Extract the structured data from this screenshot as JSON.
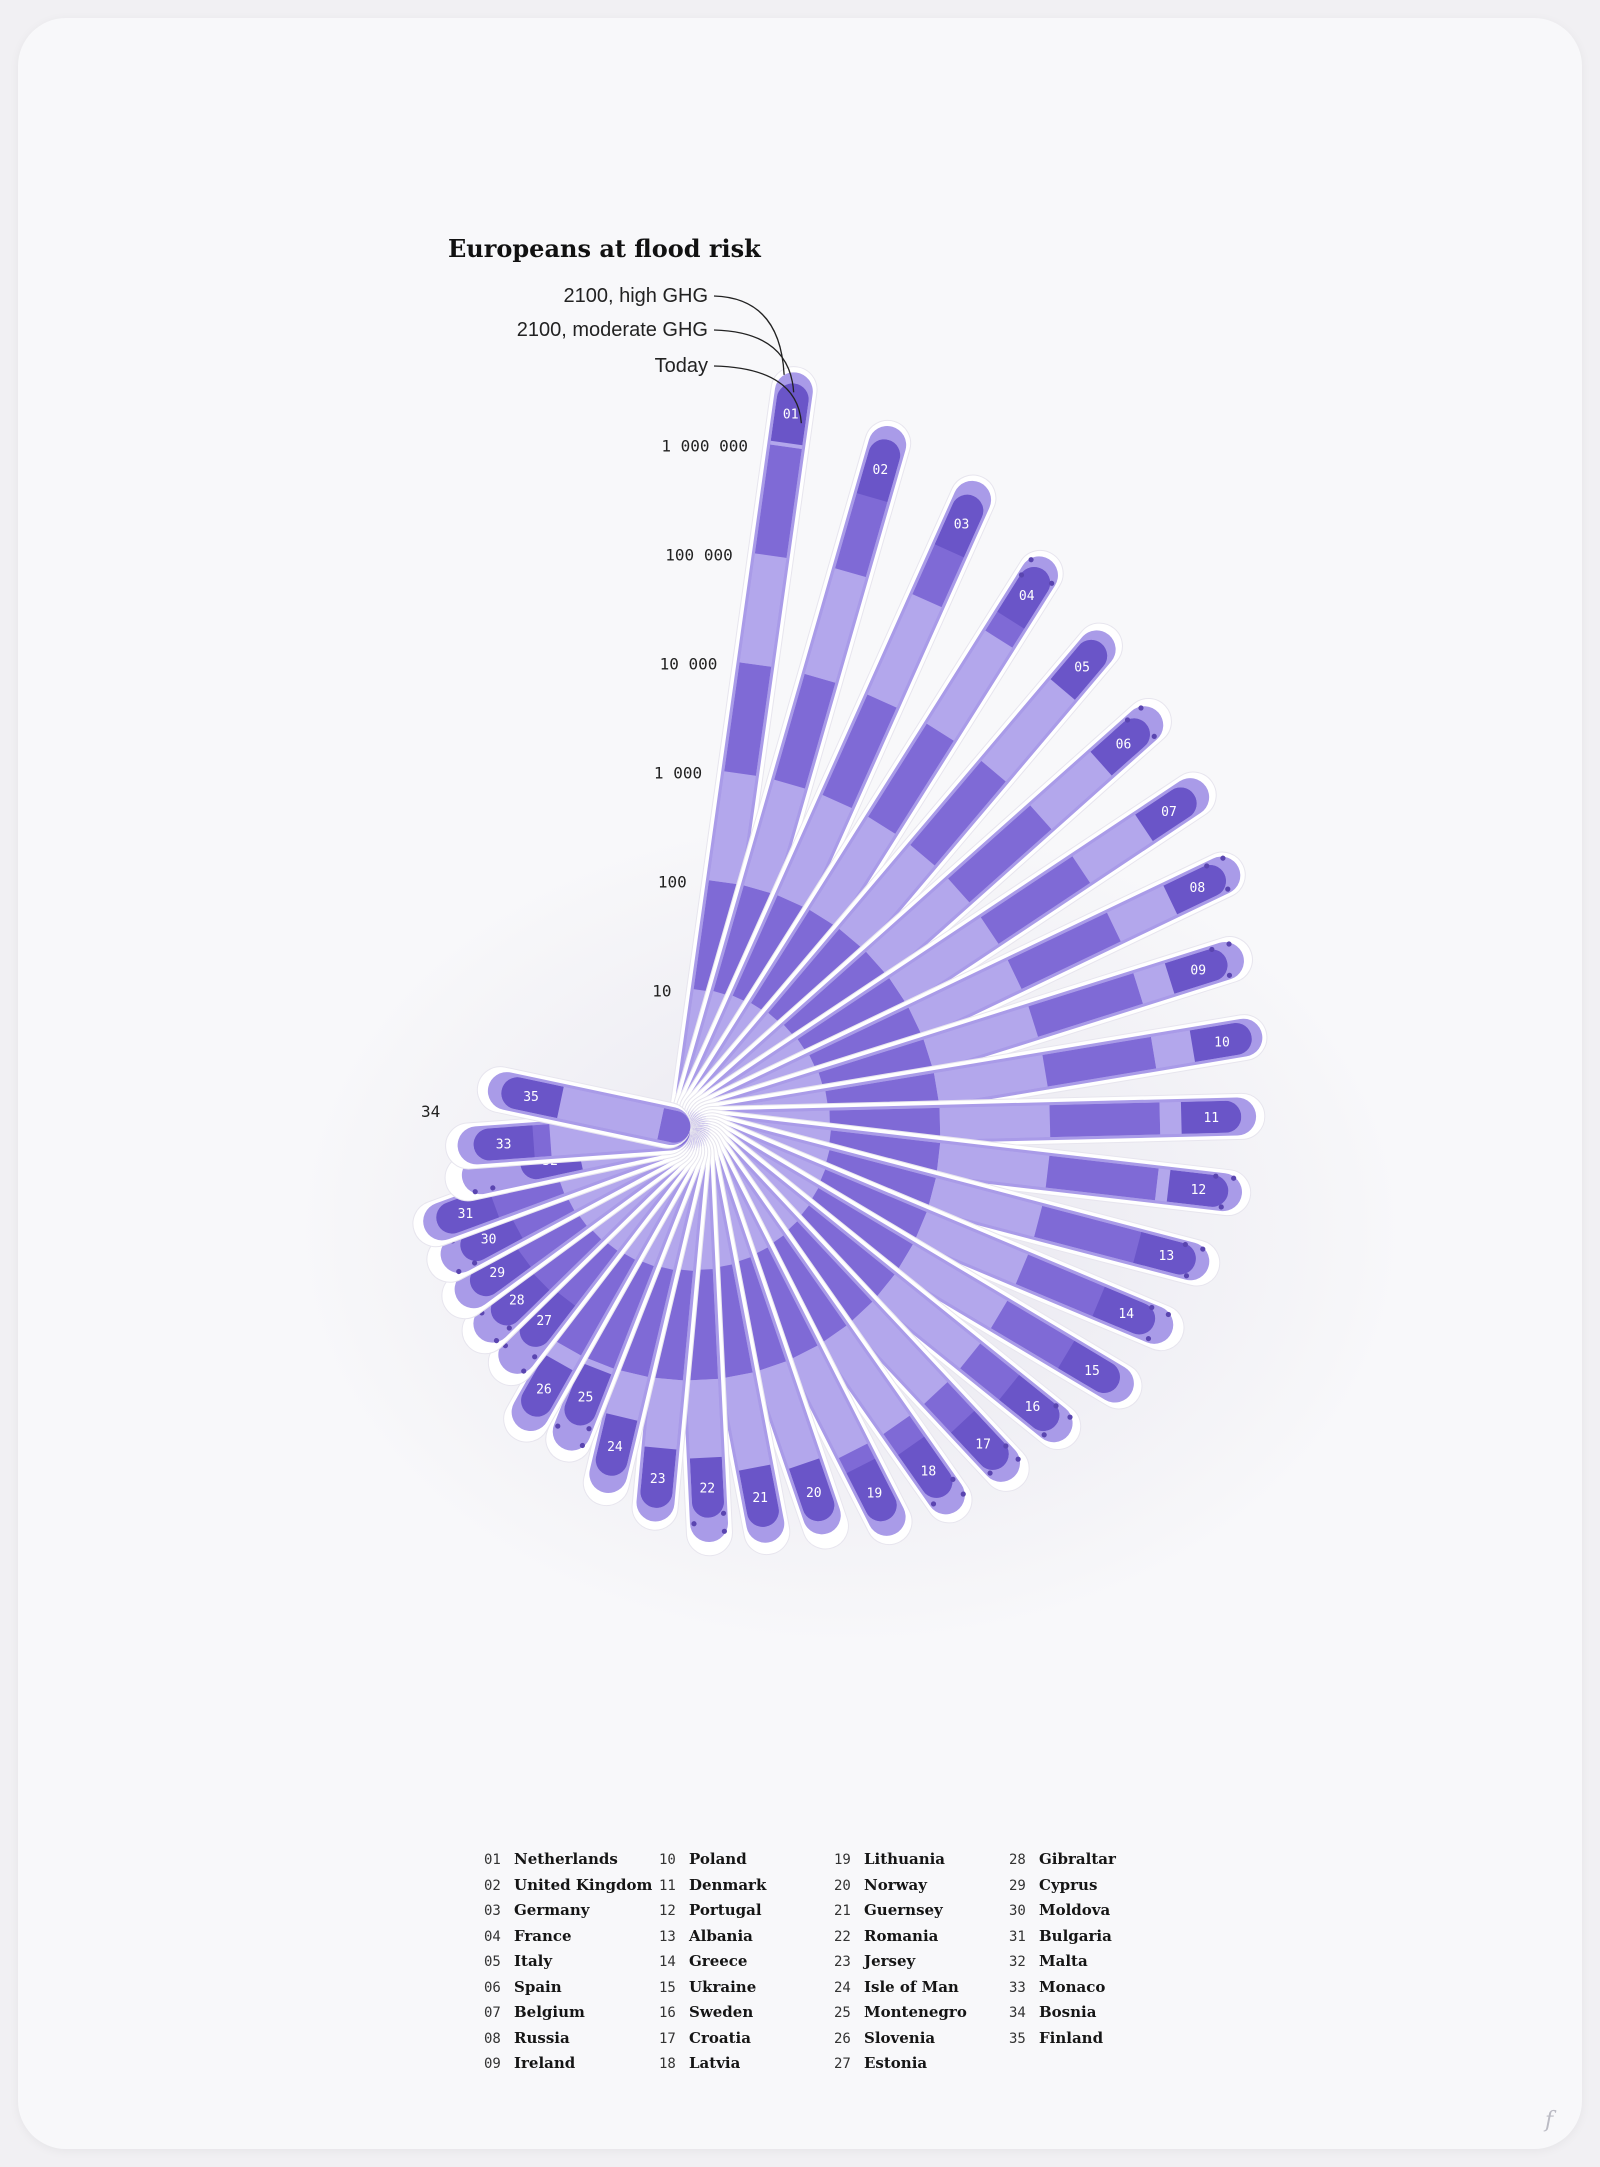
{
  "chart_data": {
    "type": "radial-bar",
    "title": "Europeans at flood risk",
    "series_names": [
      "2100, high GHG",
      "2100, moderate GHG",
      "Today"
    ],
    "scale": "log",
    "y_ticks": [
      "1 000 000",
      "100 000",
      "10 000",
      "1 000",
      "100",
      "10"
    ],
    "y_tick_values": [
      1000000,
      100000,
      10000,
      1000,
      100,
      10
    ],
    "countries": [
      {
        "num": "01",
        "name": "Netherlands",
        "today": 3800000,
        "moderate": 4800000,
        "high": 5400000,
        "growth_dots": false
      },
      {
        "num": "02",
        "name": "United Kingdom",
        "today": 1800000,
        "moderate": 2400000,
        "high": 2700000,
        "growth_dots": false
      },
      {
        "num": "03",
        "name": "Germany",
        "today": 1100000,
        "moderate": 1500000,
        "high": 1700000,
        "growth_dots": false
      },
      {
        "num": "04",
        "name": "France",
        "today": 560000,
        "moderate": 720000,
        "high": 820000,
        "growth_dots": true
      },
      {
        "num": "05",
        "name": "Italy",
        "today": 330000,
        "moderate": 420000,
        "high": 500000,
        "growth_dots": false
      },
      {
        "num": "06",
        "name": "Spain",
        "today": 190000,
        "moderate": 270000,
        "high": 330000,
        "growth_dots": true
      },
      {
        "num": "07",
        "name": "Belgium",
        "today": 170000,
        "moderate": 230000,
        "high": 270000,
        "growth_dots": false
      },
      {
        "num": "08",
        "name": "Russia",
        "today": 130000,
        "moderate": 180000,
        "high": 200000,
        "growth_dots": true
      },
      {
        "num": "09",
        "name": "Ireland",
        "today": 70000,
        "moderate": 100000,
        "high": 120000,
        "growth_dots": true
      },
      {
        "num": "10",
        "name": "Poland",
        "today": 80000,
        "moderate": 100000,
        "high": 110000,
        "growth_dots": false
      },
      {
        "num": "11",
        "name": "Denmark",
        "today": 55000,
        "moderate": 75000,
        "high": 90000,
        "growth_dots": false
      },
      {
        "num": "12",
        "name": "Portugal",
        "today": 45000,
        "moderate": 60000,
        "high": 72000,
        "growth_dots": true
      },
      {
        "num": "13",
        "name": "Albania",
        "today": 30000,
        "moderate": 40000,
        "high": 50000,
        "growth_dots": true
      },
      {
        "num": "14",
        "name": "Greece",
        "today": 20000,
        "moderate": 30000,
        "high": 38000,
        "growth_dots": true
      },
      {
        "num": "15",
        "name": "Ukraine",
        "today": 18000,
        "moderate": 25000,
        "high": 30000,
        "growth_dots": false
      },
      {
        "num": "16",
        "name": "Sweden",
        "today": 10000,
        "moderate": 14000,
        "high": 17000,
        "growth_dots": true
      },
      {
        "num": "17",
        "name": "Croatia",
        "today": 8000,
        "moderate": 11000,
        "high": 14000,
        "growth_dots": true
      },
      {
        "num": "18",
        "name": "Latvia",
        "today": 6000,
        "moderate": 9000,
        "high": 11000,
        "growth_dots": true
      },
      {
        "num": "19",
        "name": "Lithuania",
        "today": 5000,
        "moderate": 7000,
        "high": 8500,
        "growth_dots": false
      },
      {
        "num": "20",
        "name": "Norway",
        "today": 3000,
        "moderate": 4000,
        "high": 5500,
        "growth_dots": false
      },
      {
        "num": "21",
        "name": "Guernsey",
        "today": 2500,
        "moderate": 3500,
        "high": 4500,
        "growth_dots": false
      },
      {
        "num": "22",
        "name": "Romania",
        "today": 1800,
        "moderate": 3000,
        "high": 4000,
        "growth_dots": true
      },
      {
        "num": "23",
        "name": "Jersey",
        "today": 1500,
        "moderate": 2000,
        "high": 2400,
        "growth_dots": false
      },
      {
        "num": "24",
        "name": "Isle of Man",
        "today": 900,
        "moderate": 1300,
        "high": 1700,
        "growth_dots": false
      },
      {
        "num": "25",
        "name": "Montenegro",
        "today": 400,
        "moderate": 700,
        "high": 900,
        "growth_dots": true
      },
      {
        "num": "26",
        "name": "Slovenia",
        "today": 500,
        "moderate": 700,
        "high": 900,
        "growth_dots": false
      },
      {
        "num": "27",
        "name": "Estonia",
        "today": 150,
        "moderate": 300,
        "high": 400,
        "growth_dots": true
      },
      {
        "num": "28",
        "name": "Gibraltar",
        "today": 160,
        "moderate": 260,
        "high": 350,
        "growth_dots": true
      },
      {
        "num": "29",
        "name": "Cyprus",
        "today": 150,
        "moderate": 220,
        "high": 300,
        "growth_dots": false
      },
      {
        "num": "30",
        "name": "Moldova",
        "today": 120,
        "moderate": 190,
        "high": 260,
        "growth_dots": true
      },
      {
        "num": "31",
        "name": "Bulgaria",
        "today": 150,
        "moderate": 200,
        "high": 250,
        "growth_dots": false
      },
      {
        "num": "32",
        "name": "Malta",
        "today": 20,
        "moderate": 70,
        "high": 100,
        "growth_dots": true
      },
      {
        "num": "33",
        "name": "Monaco",
        "today": 50,
        "moderate": 70,
        "high": 90,
        "growth_dots": false
      },
      {
        "num": "34",
        "name": "Bosnia",
        "today": 0,
        "moderate": 0,
        "high": 0,
        "growth_dots": false
      },
      {
        "num": "35",
        "name": "Finland",
        "today": 30,
        "moderate": 40,
        "high": 50,
        "growth_dots": false
      }
    ]
  },
  "colors": {
    "today": "#6a55c8",
    "moderate": "#a99be8",
    "high": "#ffffff",
    "band_dark": "#7f6ad6",
    "band_light": "#b3a7ec",
    "dots": "#5a45b0"
  },
  "signature": "f"
}
